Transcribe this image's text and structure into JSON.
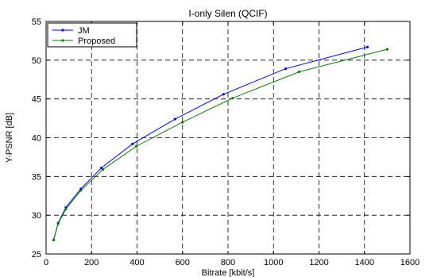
{
  "chart_data": {
    "type": "line",
    "title": "I-only Silen (QCIF)",
    "xlabel": "Bitrate [kbit/s]",
    "ylabel": "Y-PSNR [dB]",
    "xlim": [
      0,
      1600
    ],
    "ylim": [
      25,
      55
    ],
    "xticks": [
      0,
      200,
      400,
      600,
      800,
      1000,
      1200,
      1400,
      1600
    ],
    "yticks": [
      25,
      30,
      35,
      40,
      45,
      50,
      55
    ],
    "grid": true,
    "legend_position": "top-left",
    "series": [
      {
        "name": "JM",
        "color": "#0000ff",
        "marker": "dot",
        "x": [
          33,
          53,
          87,
          153,
          243,
          380,
          567,
          780,
          1053,
          1413
        ],
        "y": [
          26.8,
          29.0,
          31.0,
          33.4,
          36.1,
          39.2,
          42.4,
          45.6,
          48.9,
          51.7
        ]
      },
      {
        "name": "Proposed",
        "color": "#008000",
        "marker": "dot",
        "x": [
          33,
          53,
          87,
          153,
          250,
          397,
          600,
          820,
          1113,
          1500
        ],
        "y": [
          26.8,
          28.9,
          30.8,
          33.2,
          35.9,
          38.9,
          42.0,
          45.1,
          48.5,
          51.4
        ]
      }
    ]
  }
}
